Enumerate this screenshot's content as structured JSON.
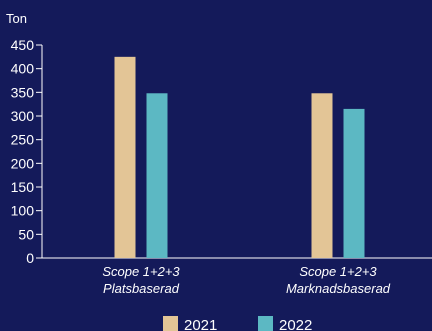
{
  "chart_data": {
    "type": "bar",
    "ylabel": "Ton",
    "ylim": [
      0,
      450
    ],
    "yticks": [
      0,
      50,
      100,
      150,
      200,
      250,
      300,
      350,
      400,
      450
    ],
    "categories": [
      [
        "Scope 1+2+3",
        "Platsbaserad"
      ],
      [
        "Scope 1+2+3",
        "Marknadsbaserad"
      ]
    ],
    "series": [
      {
        "name": "2021",
        "values": [
          425,
          348
        ],
        "color": "#e3c596"
      },
      {
        "name": "2022",
        "values": [
          348,
          315
        ],
        "color": "#5cb8c3"
      }
    ],
    "grid": false,
    "legend_position": "bottom-center",
    "background": "#141a5a",
    "axis_color": "#ffffff"
  }
}
